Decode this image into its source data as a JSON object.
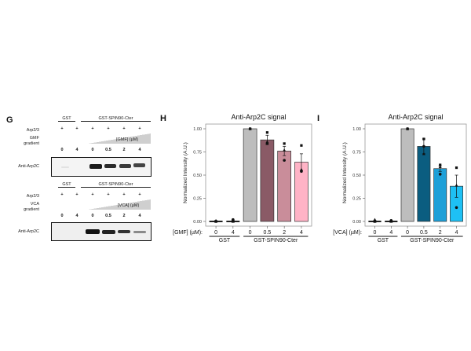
{
  "panel_g": {
    "letter": "G",
    "blot1": {
      "group_gst": "GST",
      "group_spin": "GST-SPIN90-Cter",
      "row_arp": "Arp2/3",
      "arp_marks": [
        "+",
        "+",
        "+",
        "+",
        "+",
        "+"
      ],
      "row_gradient_1": "GMF",
      "row_gradient_2": "gradient",
      "gradient_label": "[GMF] (µM)",
      "conc": [
        "0",
        "4",
        "0",
        "0.5",
        "2",
        "4"
      ],
      "antibody": "Anti-Arp2C"
    },
    "blot2": {
      "group_gst": "GST",
      "group_spin": "GST-SPIN90-Cter",
      "row_arp": "Arp2/3",
      "arp_marks": [
        "+",
        "+",
        "+",
        "+",
        "+",
        "+"
      ],
      "row_gradient_1": "VCA",
      "row_gradient_2": "gradient",
      "gradient_label": "[VCA] (µM)",
      "conc": [
        "0",
        "4",
        "0",
        "0.5",
        "2",
        "4"
      ],
      "antibody": "Anti-Arp2C"
    }
  },
  "chart_data": [
    {
      "panel": "H",
      "type": "bar",
      "title": "Anti-Arp2C signal",
      "ylabel": "Normalized Intensity (A.U.)",
      "xlabel": "[GMF] (µM):",
      "categories": [
        "0",
        "4",
        "0",
        "0.5",
        "2",
        "4"
      ],
      "groups": [
        {
          "label": "GST",
          "span": [
            0,
            1
          ]
        },
        {
          "label": "GST-SPIN90-Cter",
          "span": [
            2,
            5
          ]
        }
      ],
      "values": [
        0.0,
        0.0,
        1.0,
        0.88,
        0.76,
        0.64
      ],
      "errors": [
        0.01,
        0.01,
        0.0,
        0.05,
        0.05,
        0.09
      ],
      "points": [
        [
          0.0,
          0.01,
          0.0
        ],
        [
          0.0,
          0.01,
          0.02
        ],
        [
          1.0,
          1.0,
          1.0
        ],
        [
          0.96,
          0.86,
          0.84
        ],
        [
          0.84,
          0.77,
          0.66
        ],
        [
          0.82,
          0.56,
          0.54
        ]
      ],
      "colors": [
        "#3a3a3a",
        "#3a3a3a",
        "#bdbdbd",
        "#8a5a66",
        "#c98d9a",
        "#ffb3c6"
      ],
      "ylim": [
        0,
        1.05
      ],
      "yticks": [
        "0.00",
        "0.25",
        "0.50",
        "0.75",
        "1.00"
      ]
    },
    {
      "panel": "I",
      "type": "bar",
      "title": "Anti-Arp2C signal",
      "ylabel": "Normalized Intensity (A.U.)",
      "xlabel": "[VCA] (µM):",
      "categories": [
        "0",
        "4",
        "0",
        "0.5",
        "2",
        "4"
      ],
      "groups": [
        {
          "label": "GST",
          "span": [
            0,
            1
          ]
        },
        {
          "label": "GST-SPIN90-Cter",
          "span": [
            2,
            5
          ]
        }
      ],
      "values": [
        0.0,
        0.0,
        1.0,
        0.81,
        0.57,
        0.38
      ],
      "errors": [
        0.01,
        0.01,
        0.0,
        0.08,
        0.03,
        0.12
      ],
      "points": [
        [
          0.0,
          0.02,
          0.0
        ],
        [
          0.0,
          0.01,
          0.01
        ],
        [
          1.0,
          1.0,
          1.0
        ],
        [
          0.89,
          0.73,
          0.81
        ],
        [
          0.61,
          0.59,
          0.51
        ],
        [
          0.58,
          0.39,
          0.15
        ]
      ],
      "colors": [
        "#3a3a3a",
        "#3a3a3a",
        "#bdbdbd",
        "#0b5d80",
        "#1ea0d8",
        "#1ec0f4"
      ],
      "ylim": [
        0,
        1.05
      ],
      "yticks": [
        "0.00",
        "0.25",
        "0.50",
        "0.75",
        "1.00"
      ]
    }
  ]
}
